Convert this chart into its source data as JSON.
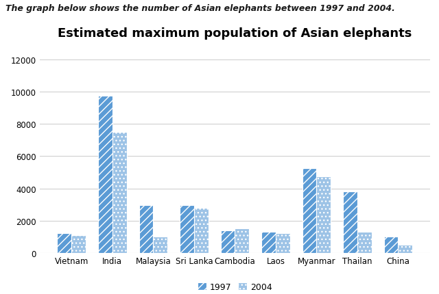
{
  "title": "Estimated maximum population of Asian elephants",
  "suptitle": "The graph below shows the number of Asian elephants between 1997 and 2004.",
  "categories": [
    "Vietnam",
    "India",
    "Malaysia",
    "Sri Lanka",
    "Cambodia",
    "Laos",
    "Myanmar",
    "Thailan",
    "China"
  ],
  "values_1997": [
    1200,
    9750,
    2950,
    2950,
    1400,
    1300,
    5250,
    3800,
    1000
  ],
  "values_2004": [
    1100,
    7500,
    1000,
    2800,
    1500,
    1200,
    4750,
    1300,
    500
  ],
  "color_1997": "#5B9BD5",
  "color_2004": "#9DC3E6",
  "hatch_1997": "///",
  "hatch_2004": "...",
  "ylim": [
    0,
    13000
  ],
  "yticks": [
    0,
    2000,
    4000,
    6000,
    8000,
    10000,
    12000
  ],
  "legend_labels": [
    "1997",
    "2004"
  ],
  "bar_width": 0.35,
  "background_color": "#ffffff",
  "chart_background": "#ffffff",
  "grid_color": "#d0d0d0",
  "title_fontsize": 13,
  "suptitle_fontsize": 9,
  "tick_fontsize": 8.5,
  "legend_fontsize": 9
}
